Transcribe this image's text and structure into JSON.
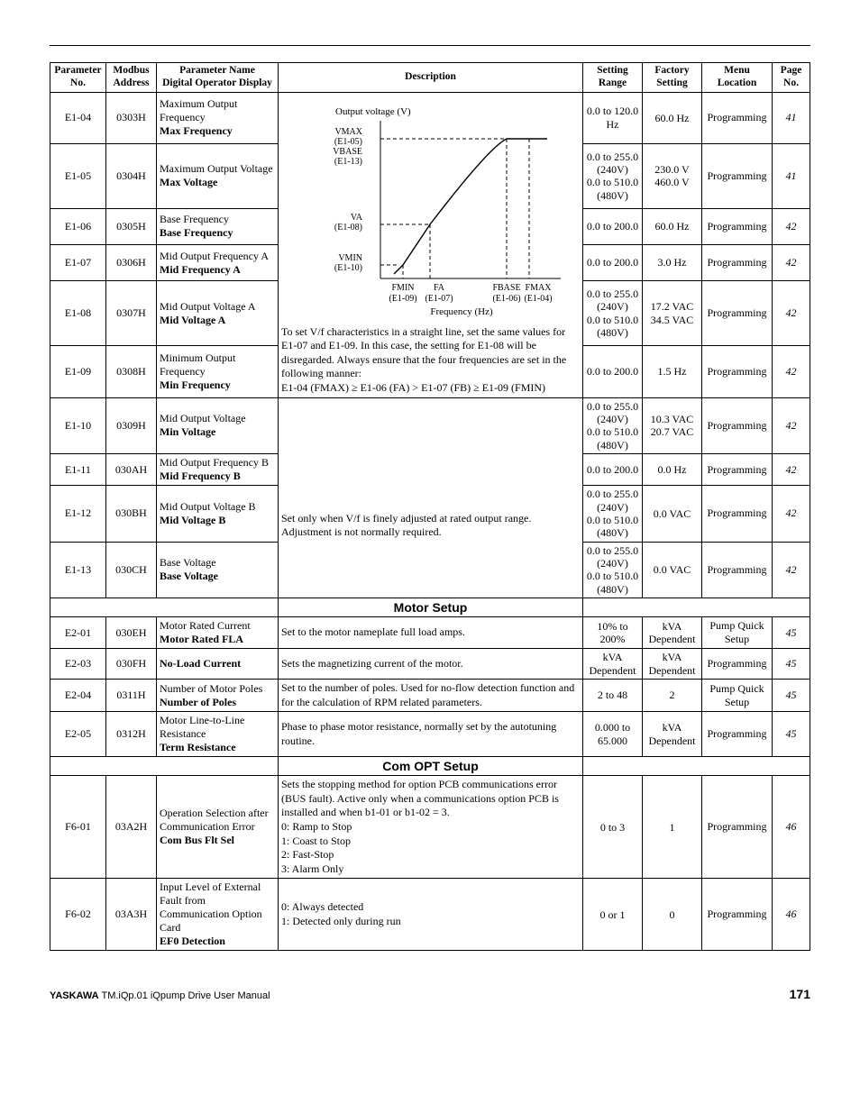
{
  "headers": {
    "paramno": "Parameter No.",
    "modbus": "Modbus Address",
    "name": "Parameter Name\nDigital Operator Display",
    "desc": "Description",
    "range": "Setting Range",
    "factory": "Factory Setting",
    "menu": "Menu Location",
    "page": "Page No."
  },
  "sections": {
    "motor": "Motor Setup",
    "comopt": "Com OPT Setup"
  },
  "vf": {
    "output_voltage_label": "Output voltage (V)",
    "vmax": "VMAX",
    "vmax_ref": "(E1-05)",
    "vbase": "VBASE",
    "vbase_ref": "(E1-13)",
    "va": "VA",
    "va_ref": "(E1-08)",
    "vmin": "VMIN",
    "vmin_ref": "(E1-10)",
    "fmin": "FMIN",
    "fmin_ref": "(E1-09)",
    "fa": "FA",
    "fa_ref": "(E1-07)",
    "fbase": "FBASE",
    "fbase_ref": "(E1-06)",
    "fmax": "FMAX",
    "fmax_ref": "(E1-04)",
    "freq_label": "Frequency (Hz)",
    "note": "To set V/f characteristics in a straight line, set the same values for E1-07 and E1-09. In this case, the setting for E1-08 will be disregarded. Always ensure that the four frequencies are set in the following manner:\nE1-04 (FMAX) ≥ E1-06 (FA) > E1-07 (FB) ≥ E1-09 (FMIN)",
    "curve_color": "#000000",
    "dash_color": "#000000"
  },
  "rows": [
    {
      "id": "e104",
      "paramno": "E1-04",
      "modbus": "0303H",
      "name_line1": "Maximum Output Frequency",
      "name_bold": "Max Frequency",
      "range": "0.0 to 120.0 Hz",
      "factory": "60.0 Hz",
      "menu": "Programming",
      "page": "41"
    },
    {
      "id": "e105",
      "paramno": "E1-05",
      "modbus": "0304H",
      "name_line1": "Maximum Output Voltage",
      "name_bold": "Max Voltage",
      "range": "0.0 to 255.0 (240V)\n0.0 to 510.0 (480V)",
      "factory": "230.0 V\n460.0 V",
      "menu": "Programming",
      "page": "41"
    },
    {
      "id": "e106",
      "paramno": "E1-06",
      "modbus": "0305H",
      "name_line1": "Base Frequency",
      "name_bold": "Base Frequency",
      "range": "0.0 to 200.0",
      "factory": "60.0 Hz",
      "menu": "Programming",
      "page": "42"
    },
    {
      "id": "e107",
      "paramno": "E1-07",
      "modbus": "0306H",
      "name_line1": "Mid Output Frequency A",
      "name_bold": "Mid Frequency A",
      "range": "0.0 to 200.0",
      "factory": "3.0 Hz",
      "menu": "Programming",
      "page": "42"
    },
    {
      "id": "e108",
      "paramno": "E1-08",
      "modbus": "0307H",
      "name_line1": "Mid Output Voltage A",
      "name_bold": "Mid Voltage A",
      "range": "0.0 to 255.0 (240V)\n0.0 to 510.0 (480V)",
      "factory": "17.2 VAC\n34.5 VAC",
      "menu": "Programming",
      "page": "42"
    },
    {
      "id": "e109",
      "paramno": "E1-09",
      "modbus": "0308H",
      "name_line1": "Minimum Output Frequency",
      "name_bold": "Min Frequency",
      "range": "0.0 to 200.0",
      "factory": "1.5 Hz",
      "menu": "Programming",
      "page": "42"
    },
    {
      "id": "e110",
      "paramno": "E1-10",
      "modbus": "0309H",
      "name_line1": "Mid Output Voltage",
      "name_bold": "Min Voltage",
      "range": "0.0 to 255.0 (240V)\n0.0 to 510.0 (480V)",
      "factory": "10.3 VAC\n20.7 VAC",
      "menu": "Programming",
      "page": "42"
    },
    {
      "id": "e111",
      "paramno": "E1-11",
      "modbus": "030AH",
      "name_line1": "Mid Output Frequency B",
      "name_bold": "Mid Frequency B",
      "range": "0.0 to 200.0",
      "factory": "0.0 Hz",
      "menu": "Programming",
      "page": "42"
    },
    {
      "id": "e112",
      "paramno": "E1-12",
      "modbus": "030BH",
      "name_line1": "Mid Output Voltage B",
      "name_bold": "Mid Voltage B",
      "range": "0.0 to 255.0 (240V)\n0.0 to 510.0 (480V)",
      "factory": "0.0 VAC",
      "menu": "Programming",
      "page": "42"
    },
    {
      "id": "e113",
      "paramno": "E1-13",
      "modbus": "030CH",
      "name_line1": "Base Voltage",
      "name_bold": "Base Voltage",
      "range": "0.0 to 255.0 (240V)\n0.0 to 510.0 (480V)",
      "factory": "0.0 VAC",
      "menu": "Programming",
      "page": "42"
    }
  ],
  "e1_desc2": "Set only when V/f is finely adjusted at rated output range. Adjustment is not normally required.",
  "motor_rows": [
    {
      "id": "e201",
      "paramno": "E2-01",
      "modbus": "030EH",
      "name_line1": "Motor Rated Current",
      "name_bold": "Motor Rated FLA",
      "desc": "Set to the motor nameplate full load amps.",
      "range": "10% to 200%",
      "factory": "kVA Dependent",
      "menu": "Pump Quick Setup",
      "page": "45"
    },
    {
      "id": "e203",
      "paramno": "E2-03",
      "modbus": "030FH",
      "name_line1": "",
      "name_bold": "No-Load Current",
      "desc": "Sets the magnetizing current of the motor.",
      "range": "kVA Dependent",
      "factory": "kVA Dependent",
      "menu": "Programming",
      "page": "45"
    },
    {
      "id": "e204",
      "paramno": "E2-04",
      "modbus": "0311H",
      "name_line1": "Number of Motor Poles",
      "name_bold": "Number of Poles",
      "desc": "Set to the number of poles. Used for no-flow detection function and for the calculation of RPM related parameters.",
      "range": "2 to 48",
      "factory": "2",
      "menu": "Pump Quick Setup",
      "page": "45"
    },
    {
      "id": "e205",
      "paramno": "E2-05",
      "modbus": "0312H",
      "name_line1": "Motor Line-to-Line Resistance",
      "name_bold": "Term Resistance",
      "desc": "Phase to phase motor resistance, normally set by the autotuning routine.",
      "range": "0.000 to 65.000",
      "factory": "kVA Dependent",
      "menu": "Programming",
      "page": "45"
    }
  ],
  "com_rows": [
    {
      "id": "f601",
      "paramno": "F6-01",
      "modbus": "03A2H",
      "name_line1": "Operation Selection after Communication Error",
      "name_bold": "Com Bus Flt Sel",
      "desc": "Sets the stopping method for option PCB communications error (BUS fault). Active only when a communications option PCB is installed and when b1-01 or b1-02 = 3.\n0: Ramp to Stop\n1: Coast to Stop\n2: Fast-Stop\n3: Alarm Only",
      "range": "0 to 3",
      "factory": "1",
      "menu": "Programming",
      "page": "46"
    },
    {
      "id": "f602",
      "paramno": "F6-02",
      "modbus": "03A3H",
      "name_line1": "Input Level of External Fault from Communication Option Card",
      "name_bold": "EF0 Detection",
      "desc": "0: Always detected\n1: Detected only during run",
      "range": "0 or 1",
      "factory": "0",
      "menu": "Programming",
      "page": "46"
    }
  ],
  "footer": {
    "brand": "YASKAWA",
    "doc": "TM.iQp.01 iQpump Drive User Manual",
    "page": "171"
  }
}
